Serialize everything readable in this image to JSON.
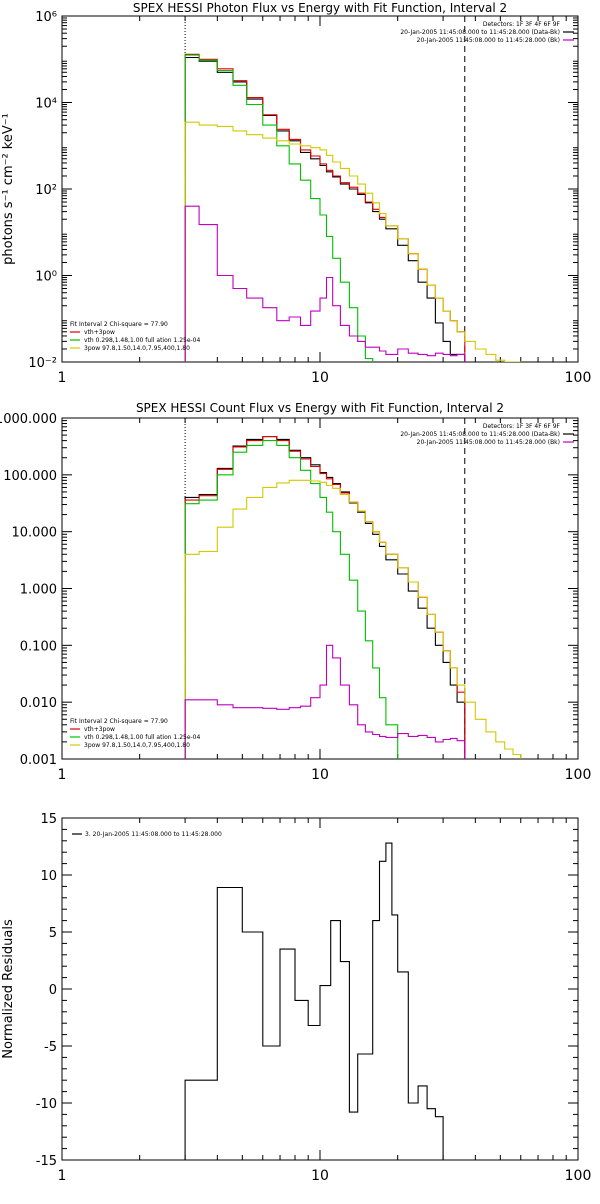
{
  "chart_data": [
    {
      "type": "line",
      "title": "SPEX HESSI Photon Flux vs Energy with Fit Function, Interval 2",
      "ylabel": "photons s⁻¹ cm⁻² keV⁻¹",
      "xscale": "log",
      "yscale": "log",
      "xlim": [
        1,
        100
      ],
      "ylim": [
        0.01,
        1000000
      ],
      "xticks": [
        1,
        10,
        100
      ],
      "xtick_labels": [
        "1",
        "10",
        "100"
      ],
      "yticks": [
        0.01,
        1,
        100,
        10000,
        1000000
      ],
      "ytick_labels": [
        "10⁻²",
        "10⁰",
        "10²",
        "10⁴",
        "10⁶"
      ],
      "vlines": [
        {
          "x": 3,
          "style": "dotted"
        },
        {
          "x": 36.4,
          "style": "dashed"
        }
      ],
      "legend_top": [
        "Detectors: 1F 3F 4F 6F 9F",
        "20-Jan-2005 11:45:08.000 to 11:45:28.000 (Data-Bk)",
        "20-Jan-2005 11:45:08.000 to 11:45:28.000 (Bk)"
      ],
      "legend_top_colors": [
        "#000000",
        "#c000c0"
      ],
      "legend_bottom": [
        "Fit Interval 2   Chi-square = 77.90",
        "vth+3pow",
        "vth 0.298,1.48,1.00  full ation 1.25e-04",
        "3pow 97.8,1.50,14.0,7.95,400,1.80"
      ],
      "legend_bottom_colors": [
        "#e00000",
        "#00c000",
        "#d4c800"
      ],
      "edges": [
        3.0,
        3.4,
        4.0,
        4.6,
        5.2,
        6.0,
        6.8,
        7.6,
        8.4,
        9.2,
        10.0,
        10.6,
        11.2,
        12.0,
        13.0,
        14.0,
        15.0,
        16.0,
        17.0,
        18.0,
        20.0,
        22.0,
        24.0,
        26.0,
        28.0,
        30.0,
        32.0,
        34.0,
        36.4,
        40.0,
        44.0,
        48.0,
        52.0,
        56.0,
        60.0
      ],
      "series": [
        {
          "name": "Data-Bk",
          "color": "#000000",
          "values": [
            110000,
            90000,
            50000,
            30000,
            12000,
            5000,
            2200,
            1300,
            700,
            500,
            350,
            250,
            190,
            130,
            100,
            75,
            48,
            30,
            20,
            12,
            5,
            2.2,
            0.7,
            0.3,
            0.08,
            0.03,
            0.015,
            0.015
          ]
        },
        {
          "name": "vth+3pow",
          "color": "#e00000",
          "values": [
            130000,
            100000,
            60000,
            32000,
            13000,
            5200,
            2400,
            1400,
            800,
            580,
            380,
            270,
            200,
            140,
            110,
            80,
            50,
            34,
            22,
            14,
            7,
            3.2,
            1.4,
            0.6,
            0.3,
            0.15,
            0.09,
            0.05
          ]
        },
        {
          "name": "vth",
          "color": "#00c000",
          "values": [
            125000,
            95000,
            55000,
            25000,
            9000,
            3000,
            1000,
            380,
            160,
            60,
            25,
            8,
            2.5,
            0.7,
            0.18,
            0.04,
            0.012,
            0.003
          ]
        },
        {
          "name": "3pow",
          "color": "#d4c800",
          "values": [
            3500,
            3000,
            2800,
            2200,
            1800,
            1500,
            1300,
            1100,
            1000,
            900,
            800,
            600,
            420,
            300,
            200,
            130,
            80,
            48,
            27,
            14,
            7,
            3.2,
            1.4,
            0.6,
            0.3,
            0.15,
            0.09,
            0.05,
            0.03,
            0.02,
            0.015,
            0.011,
            0.01,
            0.01
          ]
        },
        {
          "name": "Bk",
          "color": "#c000c0",
          "values": [
            40,
            15,
            1.0,
            0.5,
            0.3,
            0.18,
            0.09,
            0.11,
            0.07,
            0.15,
            0.3,
            0.9,
            0.2,
            0.07,
            0.04,
            0.03,
            0.022,
            0.022,
            0.018,
            0.015,
            0.02,
            0.016,
            0.015,
            0.014,
            0.016,
            0.015,
            0.014,
            0.015
          ]
        }
      ]
    },
    {
      "type": "line",
      "title": "SPEX HESSI Count Flux vs Energy with Fit Function, Interval 2",
      "xscale": "log",
      "yscale": "log",
      "xlim": [
        1,
        100
      ],
      "ylim": [
        0.001,
        1000
      ],
      "xticks": [
        1,
        10,
        100
      ],
      "xtick_labels": [
        "1",
        "10",
        "100"
      ],
      "yticks": [
        0.001,
        0.01,
        0.1,
        1,
        10,
        100,
        1000
      ],
      "ytick_labels": [
        "0.001",
        "0.010",
        "0.100",
        "1.000",
        "10.000",
        "100.000",
        "1000.000"
      ],
      "vlines": [
        {
          "x": 3,
          "style": "dotted"
        },
        {
          "x": 36.4,
          "style": "dashed"
        }
      ],
      "legend_top": [
        "Detectors: 1F 3F 4F 6F 9F",
        "20-Jan-2005 11:45:08.000 to 11:45:28.000 (Data-Bk)",
        "20-Jan-2005 11:45:08.000 to 11:45:28.000 (Bk)"
      ],
      "legend_top_colors": [
        "#000000",
        "#c000c0"
      ],
      "legend_bottom": [
        "Fit Interval 2   Chi-square = 77.90",
        "vth+3pow",
        "vth 0.298,1.48,1.00  full ation 1.25e-04",
        "3pow 97.8,1.50,14.0,7.95,400,1.80"
      ],
      "legend_bottom_colors": [
        "#e00000",
        "#00c000",
        "#d4c800"
      ],
      "edges": [
        3.0,
        3.4,
        4.0,
        4.6,
        5.2,
        6.0,
        6.8,
        7.6,
        8.4,
        9.2,
        10.0,
        10.6,
        11.2,
        12.0,
        13.0,
        14.0,
        15.0,
        16.0,
        17.0,
        18.0,
        20.0,
        22.0,
        24.0,
        26.0,
        28.0,
        30.0,
        32.0,
        34.0,
        36.4,
        40.0,
        44.0,
        48.0,
        52.0,
        56.0,
        60.0
      ],
      "series": [
        {
          "name": "Data-Bk",
          "color": "#000000",
          "values": [
            40,
            45,
            130,
            320,
            420,
            470,
            420,
            270,
            200,
            150,
            110,
            90,
            70,
            50,
            32,
            22,
            14,
            9,
            5.5,
            3.2,
            1.8,
            0.9,
            0.45,
            0.2,
            0.1,
            0.05,
            0.02,
            0.01
          ]
        },
        {
          "name": "vth+3pow",
          "color": "#e00000",
          "values": [
            36,
            43,
            125,
            310,
            400,
            470,
            400,
            260,
            190,
            140,
            105,
            85,
            68,
            48,
            33,
            23,
            15,
            10,
            6.5,
            4,
            2.3,
            1.3,
            0.7,
            0.35,
            0.17,
            0.08,
            0.04,
            0.015
          ]
        },
        {
          "name": "vth",
          "color": "#00c000",
          "values": [
            31,
            36,
            100,
            250,
            330,
            400,
            330,
            200,
            120,
            70,
            40,
            22,
            10,
            4,
            1.4,
            0.4,
            0.12,
            0.04,
            0.012,
            0.004
          ]
        },
        {
          "name": "3pow",
          "color": "#d4c800",
          "values": [
            4,
            4.5,
            12,
            25,
            40,
            60,
            72,
            80,
            80,
            78,
            74,
            65,
            58,
            45,
            33,
            23,
            15,
            10,
            6.5,
            4,
            2.3,
            1.3,
            0.7,
            0.35,
            0.17,
            0.08,
            0.04,
            0.02,
            0.01,
            0.005,
            0.003,
            0.002,
            0.0015,
            0.0012
          ]
        },
        {
          "name": "Bk",
          "color": "#c000c0",
          "values": [
            0.011,
            0.011,
            0.009,
            0.008,
            0.008,
            0.0078,
            0.0075,
            0.008,
            0.0085,
            0.012,
            0.02,
            0.1,
            0.06,
            0.02,
            0.009,
            0.004,
            0.003,
            0.0027,
            0.0025,
            0.0024,
            0.0028,
            0.0025,
            0.0026,
            0.0024,
            0.002,
            0.0022,
            0.0023,
            0.0021
          ]
        }
      ]
    },
    {
      "type": "line",
      "ylabel": "Normalized Residuals",
      "xscale": "log",
      "yscale": "linear",
      "xlim": [
        1,
        100
      ],
      "ylim": [
        -15,
        15
      ],
      "xticks": [
        1,
        10,
        100
      ],
      "xtick_labels": [
        "1",
        "10",
        "100"
      ],
      "yticks": [
        -15,
        -10,
        -5,
        0,
        5,
        10,
        15
      ],
      "ytick_labels": [
        "-15",
        "-10",
        "-5",
        "0",
        "5",
        "10",
        "15"
      ],
      "legend": [
        "3. 20-Jan-2005 11:45:08.000 to 11:45:28.000"
      ],
      "edges": [
        3.0,
        4.0,
        5.0,
        6.0,
        7.0,
        8.0,
        9.0,
        10.0,
        11.0,
        12.0,
        13.0,
        14.0,
        15.0,
        16.0,
        17.0,
        18.0,
        19.0,
        20.0,
        22.0,
        24.0,
        26.0,
        28.0,
        30.0,
        32.0,
        34.0,
        36.0
      ],
      "series": [
        {
          "name": "3. 20-Jan-2005 11:45:08.000 to 11:45:28.000",
          "color": "#000000",
          "values": [
            -8,
            8.9,
            5,
            -5,
            3.5,
            -1,
            -3.2,
            0.3,
            6,
            2.4,
            -10.8,
            -5.7,
            -5.7,
            6,
            11.2,
            12.8,
            6.5,
            1.5,
            -10,
            -8.5,
            -10.5,
            -11.2
          ]
        }
      ]
    }
  ]
}
